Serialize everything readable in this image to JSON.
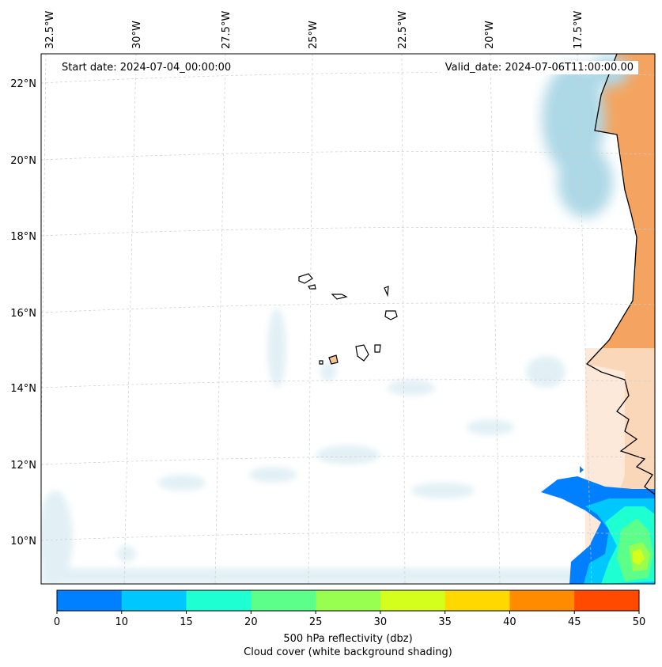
{
  "header": {
    "start_date": "Start date: 2024-07-04_00:00:00",
    "valid_date": "Valid_date: 2024-07-06T11:00:00.00"
  },
  "lon_labels": [
    "32.5°W",
    "30°W",
    "27.5°W",
    "25°W",
    "22.5°W",
    "20°W",
    "17.5°W"
  ],
  "lat_labels": [
    "22°N",
    "20°N",
    "18°N",
    "16°N",
    "14°N",
    "12°N",
    "10°N"
  ],
  "colorbar": {
    "label_line1": "500 hPa reflectivity (dbz)",
    "label_line2": "Cloud cover (white background shading)",
    "ticks": [
      "0",
      "10",
      "15",
      "20",
      "25",
      "30",
      "35",
      "40",
      "45",
      "50"
    ],
    "colors": [
      "#0080ff",
      "#00c8ff",
      "#1effd2",
      "#5cff8a",
      "#98ff50",
      "#d4ff1c",
      "#ffd800",
      "#ff8c00",
      "#ff4a00"
    ]
  },
  "map_colors": {
    "land": "#f4a460",
    "cloud": "#add8e6",
    "coast": "#000000",
    "grid": "#cccccc"
  }
}
